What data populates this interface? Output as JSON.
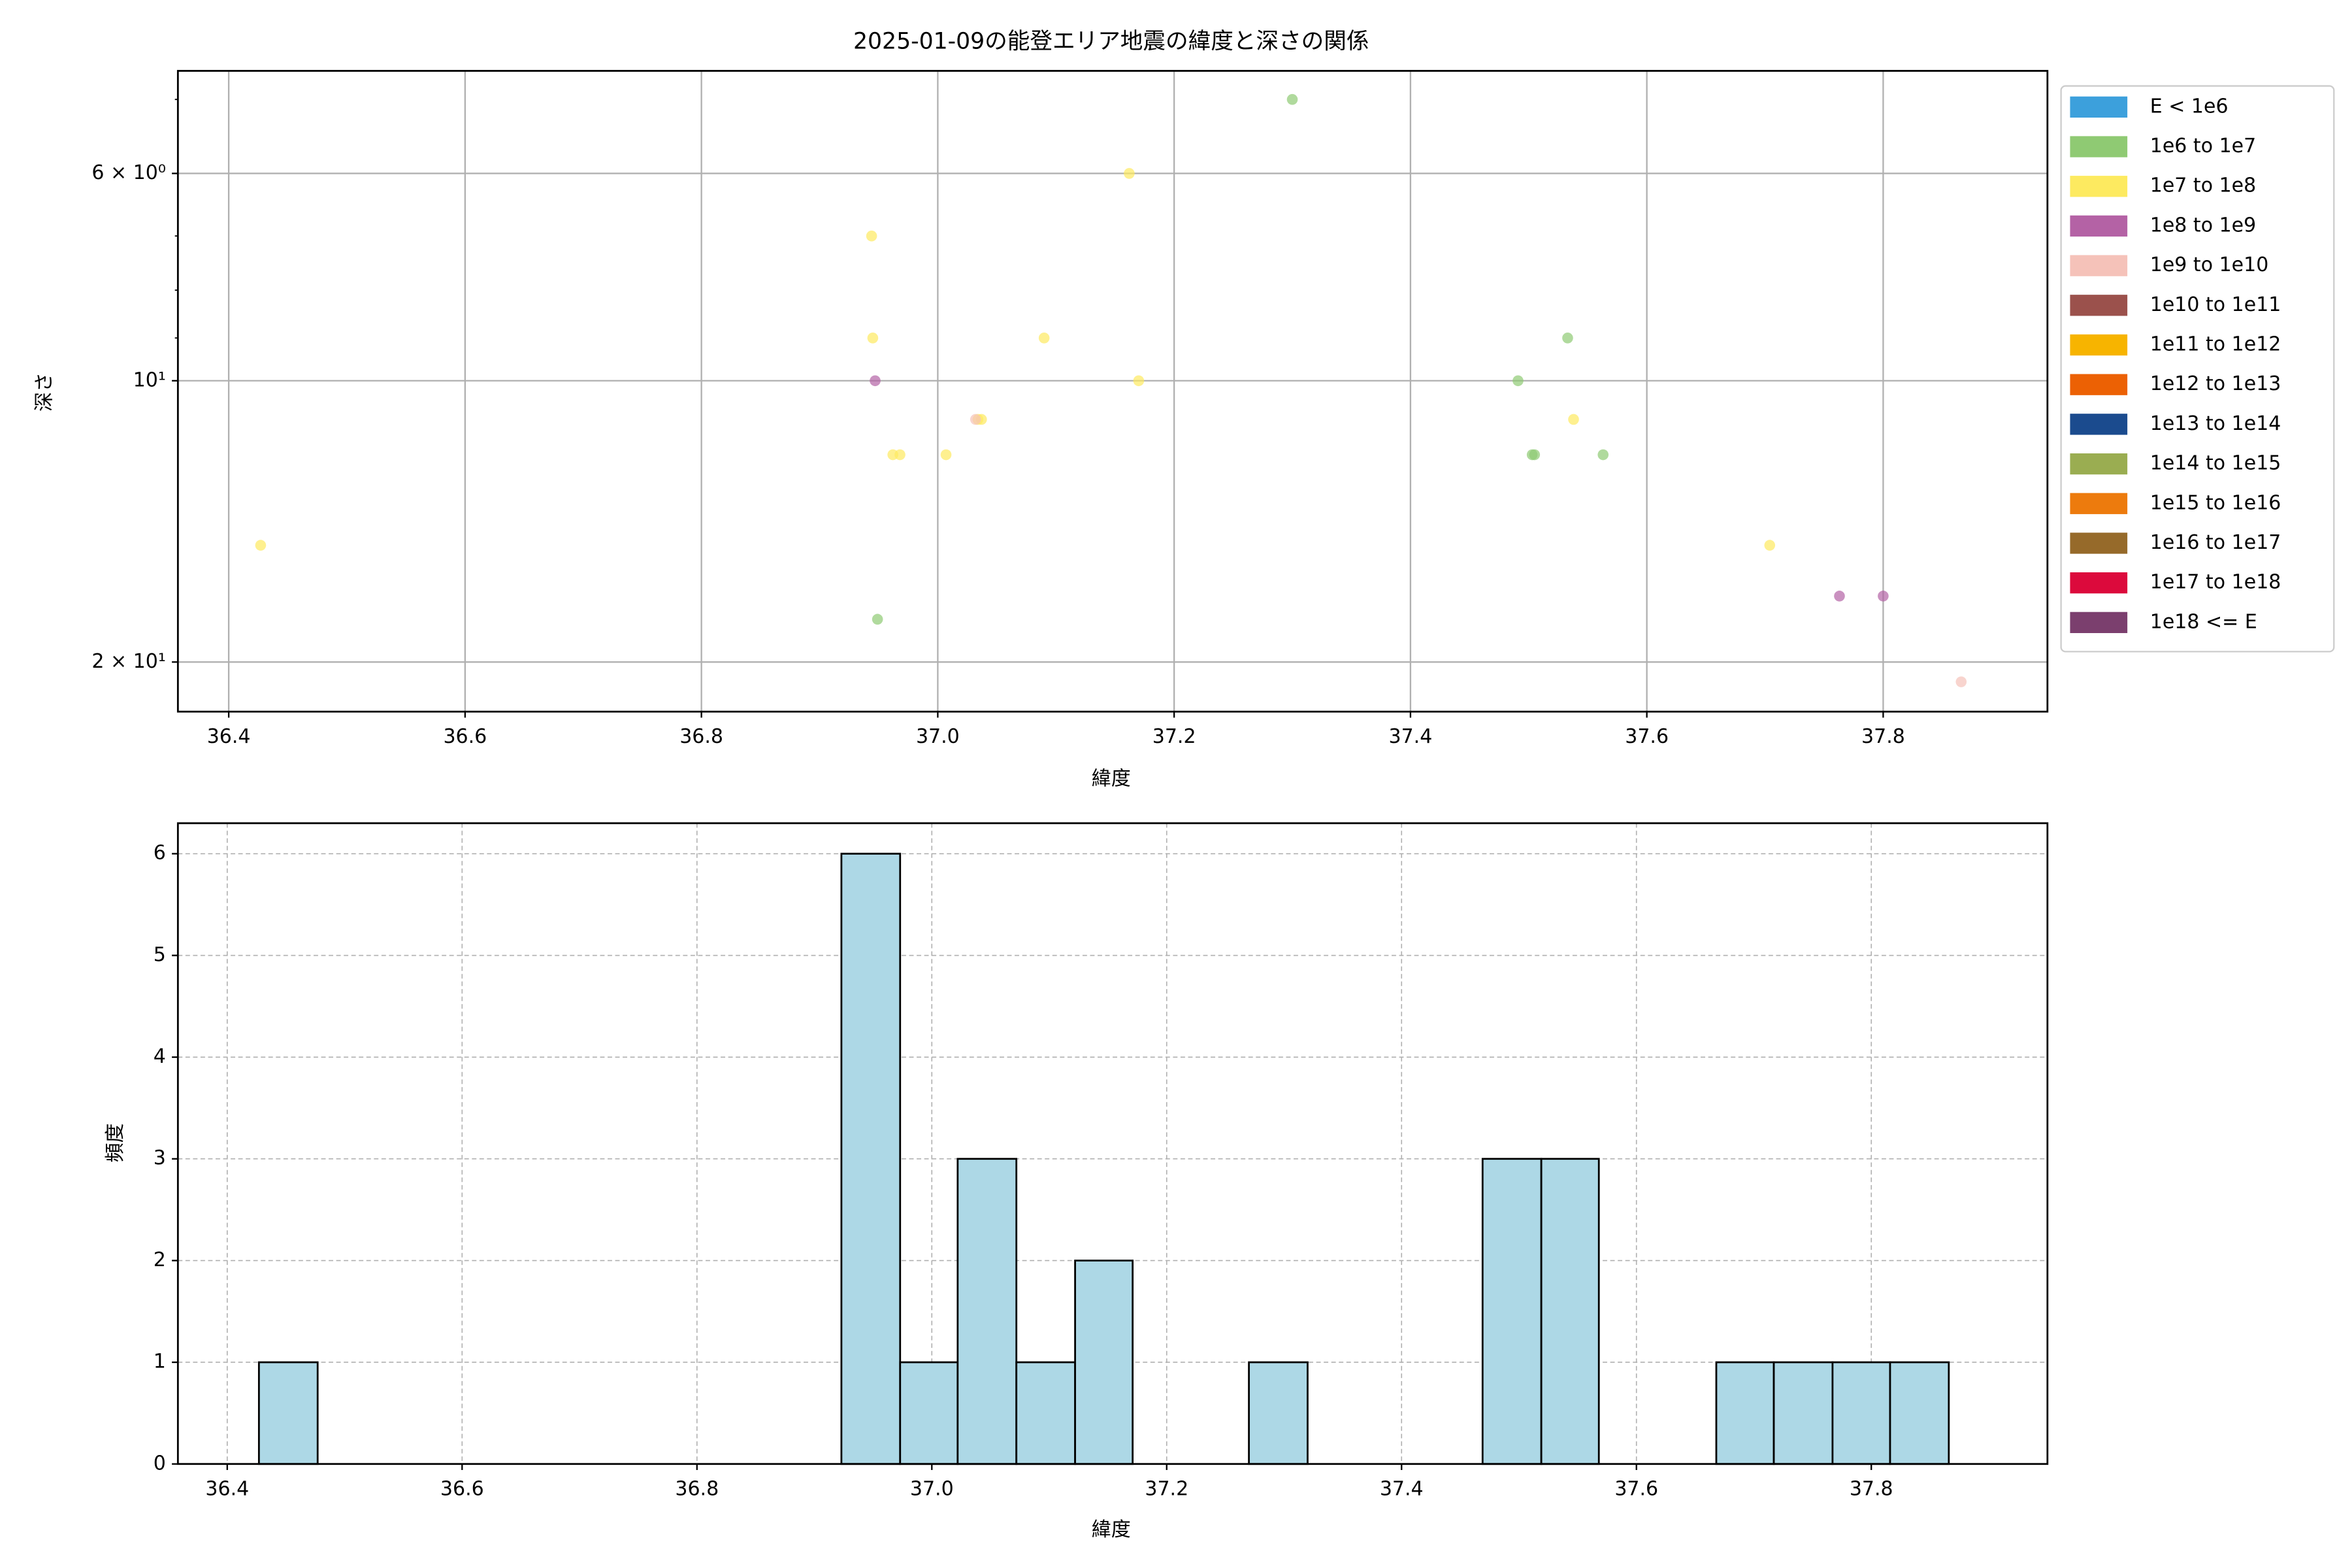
{
  "chart_data": [
    {
      "type": "scatter",
      "title": "2025-01-09の能登エリア地震の緯度と深さの関係",
      "xlabel": "緯度",
      "ylabel": "深さ",
      "log_y": true,
      "grid": true,
      "grid_style": "solid",
      "legend": "outside-upper-right",
      "alpha": 0.7,
      "xlim": [
        36.357,
        37.939
      ],
      "ylim": [
        22.6,
        4.66
      ],
      "xticks": [
        36.4,
        36.6,
        36.8,
        {
          "value": 37,
          "label": "37.0"
        },
        37.2,
        37.4,
        37.6,
        37.8
      ],
      "yticks": [
        {
          "value": 6,
          "label": "6 × 10⁰"
        },
        {
          "value": 10,
          "label": "10¹"
        },
        {
          "value": 20,
          "label": "2 × 10¹"
        }
      ],
      "minor_yticks": [
        5,
        7,
        8,
        9
      ],
      "series": [
        {
          "name": "E < 1e6",
          "color": "#3ca0dc",
          "x": [],
          "y": []
        },
        {
          "name": "1e6 to 1e7",
          "color": "#8fca73",
          "x": [
            36.949,
            37.3,
            37.491,
            37.503,
            37.505,
            37.533,
            37.563
          ],
          "y": [
            18,
            5,
            10,
            12,
            12,
            9,
            12
          ]
        },
        {
          "name": "1e7 to 1e8",
          "color": "#fdea60",
          "x": [
            36.427,
            36.944,
            36.945,
            36.962,
            36.968,
            37.007,
            37.034,
            37.037,
            37.09,
            37.162,
            37.17,
            37.538,
            37.704
          ],
          "y": [
            15,
            7,
            9,
            12,
            12,
            12,
            11,
            11,
            9,
            6,
            10,
            11,
            15
          ]
        },
        {
          "name": "1e8 to 1e9",
          "color": "#b462a5",
          "x": [
            36.947,
            37.763,
            37.8
          ],
          "y": [
            10,
            17,
            17
          ]
        },
        {
          "name": "1e9 to 1e10",
          "color": "#f5c2b9",
          "x": [
            37.032,
            37.866
          ],
          "y": [
            11,
            21
          ]
        },
        {
          "name": "1e10 to 1e11",
          "color": "#9b514c",
          "x": [],
          "y": []
        },
        {
          "name": "1e11 to 1e12",
          "color": "#f7b400",
          "x": [],
          "y": []
        },
        {
          "name": "1e12 to 1e13",
          "color": "#ec6104",
          "x": [],
          "y": []
        },
        {
          "name": "1e13 to 1e14",
          "color": "#1b4b8e",
          "x": [],
          "y": []
        },
        {
          "name": "1e14 to 1e15",
          "color": "#9aad51",
          "x": [],
          "y": []
        },
        {
          "name": "1e15 to 1e16",
          "color": "#ed7b0d",
          "x": [],
          "y": []
        },
        {
          "name": "1e16 to 1e17",
          "color": "#966a2a",
          "x": [],
          "y": []
        },
        {
          "name": "1e17 to 1e18",
          "color": "#dc0a3c",
          "x": [],
          "y": []
        },
        {
          "name": "1e18 <= E",
          "color": "#7b3f6e",
          "x": [],
          "y": []
        }
      ]
    },
    {
      "type": "histogram",
      "xlabel": "緯度",
      "ylabel": "頻度",
      "grid": true,
      "grid_style": "dashed",
      "color": "#add8e6",
      "edgecolor": "#000000",
      "xlim": [
        36.358,
        37.95
      ],
      "ylim": [
        0,
        6.3
      ],
      "xticks": [
        36.4,
        36.6,
        36.8,
        {
          "value": 37,
          "label": "37.0"
        },
        37.2,
        37.4,
        37.6,
        37.8
      ],
      "yticks": [
        0,
        1,
        2,
        3,
        4,
        5,
        6
      ],
      "bins": [
        36.427,
        36.477,
        36.526,
        36.576,
        36.625,
        36.675,
        36.725,
        36.774,
        36.824,
        36.874,
        36.923,
        36.973,
        37.022,
        37.072,
        37.122,
        37.171,
        37.221,
        37.27,
        37.32,
        37.37,
        37.419,
        37.469,
        37.519,
        37.568,
        37.618,
        37.668,
        37.717,
        37.767,
        37.816,
        37.866
      ],
      "counts": [
        1,
        0,
        0,
        0,
        0,
        0,
        0,
        0,
        0,
        0,
        6,
        1,
        3,
        1,
        2,
        0,
        0,
        1,
        0,
        0,
        0,
        3,
        3,
        0,
        0,
        1,
        1,
        1,
        1
      ]
    }
  ]
}
